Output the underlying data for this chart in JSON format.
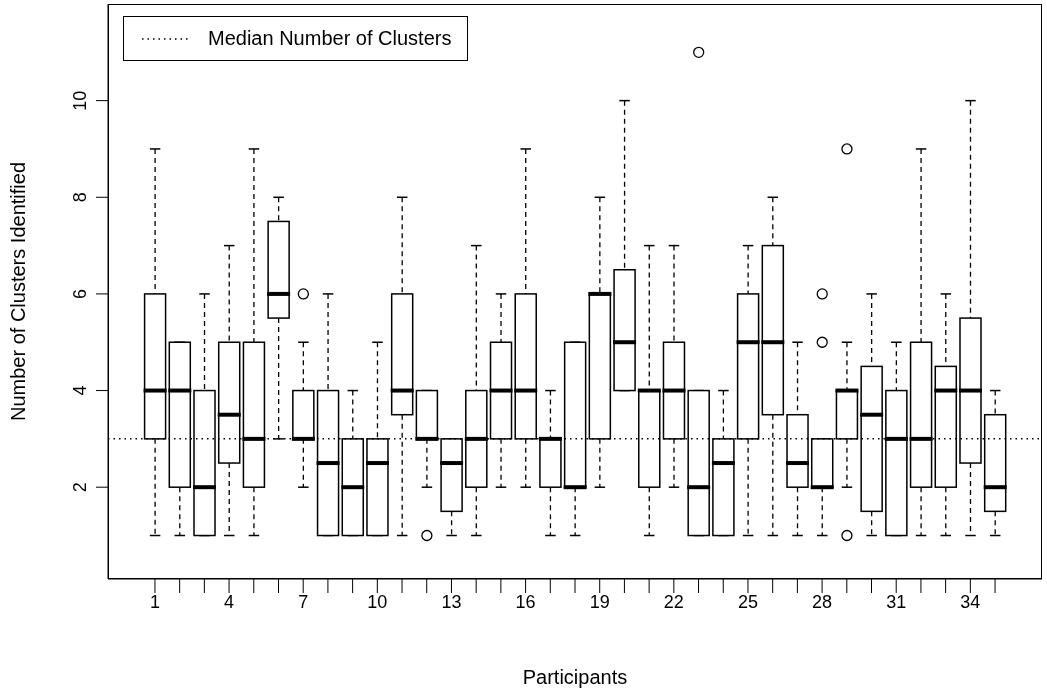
{
  "chart_data": {
    "type": "box",
    "xlabel": "Participants",
    "ylabel": "Number of Clusters Identified",
    "categories": [
      "1",
      null,
      null,
      "4",
      null,
      null,
      "7",
      null,
      null,
      "10",
      null,
      null,
      "13",
      null,
      null,
      "16",
      null,
      null,
      "19",
      null,
      null,
      "22",
      null,
      null,
      "25",
      null,
      null,
      "28",
      null,
      null,
      "31",
      null,
      null,
      "34",
      null
    ],
    "boxes": [
      {
        "low": 1,
        "q1": 3,
        "median": 4,
        "q3": 6,
        "high": 9
      },
      {
        "low": 1,
        "q1": 2,
        "median": 4,
        "q3": 5,
        "high": 5
      },
      {
        "low": 1,
        "q1": 1,
        "median": 2,
        "q3": 4,
        "high": 6
      },
      {
        "low": 1,
        "q1": 2.5,
        "median": 3.5,
        "q3": 5,
        "high": 7
      },
      {
        "low": 1,
        "q1": 2,
        "median": 3,
        "q3": 5,
        "high": 9
      },
      {
        "low": 3,
        "q1": 5.5,
        "median": 6,
        "q3": 7.5,
        "high": 8
      },
      {
        "low": 2,
        "q1": 3,
        "median": 3,
        "q3": 4,
        "high": 5,
        "outliers": [
          6
        ]
      },
      {
        "low": 1,
        "q1": 1,
        "median": 2.5,
        "q3": 4,
        "high": 6
      },
      {
        "low": 1,
        "q1": 1,
        "median": 2,
        "q3": 3,
        "high": 4
      },
      {
        "low": 1,
        "q1": 1,
        "median": 2.5,
        "q3": 3,
        "high": 5
      },
      {
        "low": 1,
        "q1": 3.5,
        "median": 4,
        "q3": 6,
        "high": 8
      },
      {
        "low": 2,
        "q1": 3,
        "median": 3,
        "q3": 4,
        "high": 4,
        "outliers": [
          1
        ]
      },
      {
        "low": 1,
        "q1": 1.5,
        "median": 2.5,
        "q3": 3,
        "high": 3
      },
      {
        "low": 1,
        "q1": 2,
        "median": 3,
        "q3": 4,
        "high": 7
      },
      {
        "low": 2,
        "q1": 3,
        "median": 4,
        "q3": 5,
        "high": 6
      },
      {
        "low": 2,
        "q1": 3,
        "median": 4,
        "q3": 6,
        "high": 9
      },
      {
        "low": 1,
        "q1": 2,
        "median": 3,
        "q3": 3,
        "high": 4
      },
      {
        "low": 1,
        "q1": 2,
        "median": 2,
        "q3": 5,
        "high": 5
      },
      {
        "low": 2,
        "q1": 3,
        "median": 6,
        "q3": 6,
        "high": 8
      },
      {
        "low": 4,
        "q1": 4,
        "median": 5,
        "q3": 6.5,
        "high": 10
      },
      {
        "low": 1,
        "q1": 2,
        "median": 4,
        "q3": 4,
        "high": 7
      },
      {
        "low": 2,
        "q1": 3,
        "median": 4,
        "q3": 5,
        "high": 7
      },
      {
        "low": 1,
        "q1": 1,
        "median": 2,
        "q3": 4,
        "high": 4,
        "outliers": [
          11
        ]
      },
      {
        "low": 1,
        "q1": 1,
        "median": 2.5,
        "q3": 3,
        "high": 4
      },
      {
        "low": 1,
        "q1": 3,
        "median": 5,
        "q3": 6,
        "high": 7
      },
      {
        "low": 1,
        "q1": 3.5,
        "median": 5,
        "q3": 7,
        "high": 8
      },
      {
        "low": 1,
        "q1": 2,
        "median": 2.5,
        "q3": 3.5,
        "high": 5
      },
      {
        "low": 1,
        "q1": 2,
        "median": 2,
        "q3": 3,
        "high": 3,
        "outliers": [
          5,
          6
        ]
      },
      {
        "low": 2,
        "q1": 3,
        "median": 4,
        "q3": 4,
        "high": 5,
        "outliers": [
          1,
          9
        ]
      },
      {
        "low": 1,
        "q1": 1.5,
        "median": 3.5,
        "q3": 4.5,
        "high": 6
      },
      {
        "low": 1,
        "q1": 1,
        "median": 3,
        "q3": 4,
        "high": 5
      },
      {
        "low": 1,
        "q1": 2,
        "median": 3,
        "q3": 5,
        "high": 9
      },
      {
        "low": 1,
        "q1": 2,
        "median": 4,
        "q3": 4.5,
        "high": 6
      },
      {
        "low": 1,
        "q1": 2.5,
        "median": 4,
        "q3": 5.5,
        "high": 10
      },
      {
        "low": 1,
        "q1": 1.5,
        "median": 2,
        "q3": 3.5,
        "high": 4
      }
    ],
    "ylim": [
      0.1,
      12
    ],
    "yticks": [
      2,
      4,
      6,
      8,
      10
    ],
    "ref_lines": [
      {
        "axis": "y",
        "value": 3,
        "label": "Median Number of Clusters",
        "color": "#000000",
        "line_style": "dotted"
      }
    ],
    "legend": "top left",
    "grid": false
  }
}
